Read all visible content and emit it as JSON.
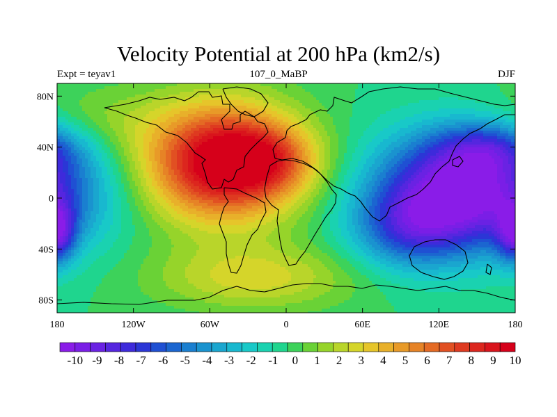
{
  "title": "Velocity Potential at 200 hPa (km2/s)",
  "subtitle_left": "Expt = teyav1",
  "subtitle_center": "107_0_MaBP",
  "subtitle_right": "DJF",
  "y_ticks": [
    {
      "lat": 80,
      "label": "80N"
    },
    {
      "lat": 40,
      "label": "40N"
    },
    {
      "lat": 0,
      "label": "0"
    },
    {
      "lat": -40,
      "label": "40S"
    },
    {
      "lat": -80,
      "label": "80S"
    }
  ],
  "x_ticks": [
    {
      "lon": -180,
      "label": "180"
    },
    {
      "lon": -120,
      "label": "120W"
    },
    {
      "lon": -60,
      "label": "60W"
    },
    {
      "lon": 0,
      "label": "0"
    },
    {
      "lon": 60,
      "label": "60E"
    },
    {
      "lon": 120,
      "label": "120E"
    },
    {
      "lon": 180,
      "label": "180"
    }
  ],
  "colorbar": {
    "colors": [
      "#8a1ce8",
      "#7a1ee6",
      "#6a22e3",
      "#5526df",
      "#3e2adb",
      "#2b36d6",
      "#1f50d3",
      "#1b66d0",
      "#1a7fd0",
      "#1a93cf",
      "#1aa6cf",
      "#18b8cf",
      "#18c9c8",
      "#1ad2b0",
      "#1fd58e",
      "#3dd25a",
      "#6ad236",
      "#96d42a",
      "#b9d52a",
      "#d5d52a",
      "#e6c52a",
      "#e8b02a",
      "#e89a28",
      "#e68326",
      "#e46a24",
      "#e15022",
      "#de3a20",
      "#dc261e",
      "#d9141c",
      "#d6001a"
    ],
    "labels": [
      "-10",
      "-9",
      "-8",
      "-7",
      "-6",
      "-5",
      "-4",
      "-3",
      "-2",
      "-1",
      "0",
      "1",
      "2",
      "3",
      "4",
      "5",
      "6",
      "7",
      "8",
      "9",
      "10"
    ]
  },
  "chart_data": {
    "type": "heatmap",
    "title": "Velocity Potential at 200 hPa (km2/s)",
    "variable": "velocity potential",
    "level": "200 hPa",
    "units": "km2/s",
    "experiment": "teyav1",
    "period": "107_0_MaBP",
    "season": "DJF",
    "xlim": [
      -180,
      180
    ],
    "ylim": [
      -90,
      90
    ],
    "color_range": [
      -10,
      10
    ],
    "centers": [
      {
        "name": "positive maximum",
        "lon": -50,
        "lat": 30,
        "value": 9.8
      },
      {
        "name": "positive lobe",
        "lon": -20,
        "lat": 30,
        "value": 9.0
      },
      {
        "name": "negative minimum",
        "lon": 145,
        "lat": 5,
        "value": -10
      },
      {
        "name": "negative lobe",
        "lon": 100,
        "lat": -25,
        "value": -9.3
      },
      {
        "name": "negative lobe",
        "lon": 160,
        "lat": 38,
        "value": -7.5
      },
      {
        "name": "southern positive",
        "lon": -25,
        "lat": -60,
        "value": 2.5
      },
      {
        "name": "edge minimum",
        "lon": -180,
        "lat": -28,
        "value": -6.5
      }
    ],
    "landmasses": [
      "North America",
      "South America",
      "Greenland",
      "Europe",
      "Africa",
      "Asia",
      "Australia",
      "Antarctica"
    ]
  }
}
